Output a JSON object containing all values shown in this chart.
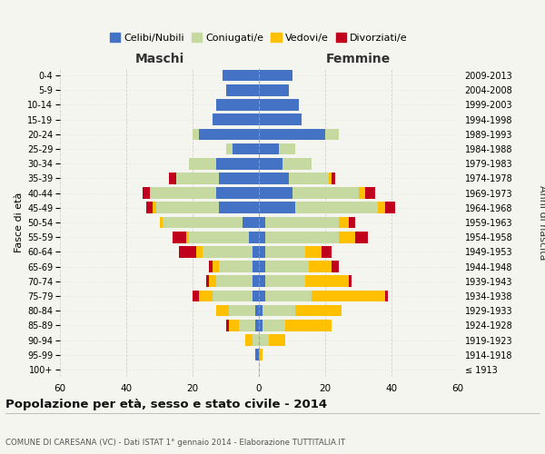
{
  "age_groups": [
    "100+",
    "95-99",
    "90-94",
    "85-89",
    "80-84",
    "75-79",
    "70-74",
    "65-69",
    "60-64",
    "55-59",
    "50-54",
    "45-49",
    "40-44",
    "35-39",
    "30-34",
    "25-29",
    "20-24",
    "15-19",
    "10-14",
    "5-9",
    "0-4"
  ],
  "birth_years": [
    "≤ 1913",
    "1914-1918",
    "1919-1923",
    "1924-1928",
    "1929-1933",
    "1934-1938",
    "1939-1943",
    "1944-1948",
    "1949-1953",
    "1954-1958",
    "1959-1963",
    "1964-1968",
    "1969-1973",
    "1974-1978",
    "1979-1983",
    "1984-1988",
    "1989-1993",
    "1994-1998",
    "1999-2003",
    "2004-2008",
    "2009-2013"
  ],
  "male": {
    "celibi": [
      0,
      1,
      0,
      1,
      1,
      2,
      2,
      2,
      2,
      3,
      5,
      12,
      13,
      12,
      13,
      8,
      18,
      14,
      13,
      10,
      11
    ],
    "coniugati": [
      0,
      0,
      2,
      5,
      8,
      12,
      11,
      10,
      15,
      18,
      24,
      19,
      20,
      13,
      8,
      2,
      2,
      0,
      0,
      0,
      0
    ],
    "vedovi": [
      0,
      0,
      2,
      3,
      4,
      4,
      2,
      2,
      2,
      1,
      1,
      1,
      0,
      0,
      0,
      0,
      0,
      0,
      0,
      0,
      0
    ],
    "divorziati": [
      0,
      0,
      0,
      1,
      0,
      2,
      1,
      1,
      5,
      4,
      0,
      2,
      2,
      2,
      0,
      0,
      0,
      0,
      0,
      0,
      0
    ]
  },
  "female": {
    "nubili": [
      0,
      0,
      0,
      1,
      1,
      2,
      2,
      2,
      2,
      2,
      2,
      11,
      10,
      9,
      7,
      6,
      20,
      13,
      12,
      9,
      10
    ],
    "coniugate": [
      0,
      0,
      3,
      7,
      10,
      14,
      12,
      13,
      12,
      22,
      22,
      25,
      20,
      12,
      9,
      5,
      4,
      0,
      0,
      0,
      0
    ],
    "vedove": [
      0,
      1,
      5,
      14,
      14,
      22,
      13,
      7,
      5,
      5,
      3,
      2,
      2,
      1,
      0,
      0,
      0,
      0,
      0,
      0,
      0
    ],
    "divorziate": [
      0,
      0,
      0,
      0,
      0,
      1,
      1,
      2,
      3,
      4,
      2,
      3,
      3,
      1,
      0,
      0,
      0,
      0,
      0,
      0,
      0
    ]
  },
  "colors": {
    "celibi": "#4472c4",
    "coniugati": "#c5d9a0",
    "vedovi": "#ffc000",
    "divorziati": "#c0001c"
  },
  "xlim": 60,
  "title": "Popolazione per età, sesso e stato civile - 2014",
  "subtitle": "COMUNE DI CARESANA (VC) - Dati ISTAT 1° gennaio 2014 - Elaborazione TUTTITALIA.IT",
  "ylabel": "Fasce di età",
  "ylabel_right": "Anni di nascita",
  "xlabel_left": "Maschi",
  "xlabel_right": "Femmine",
  "bg_color": "#f5f5f0",
  "grid_color": "#cccccc"
}
